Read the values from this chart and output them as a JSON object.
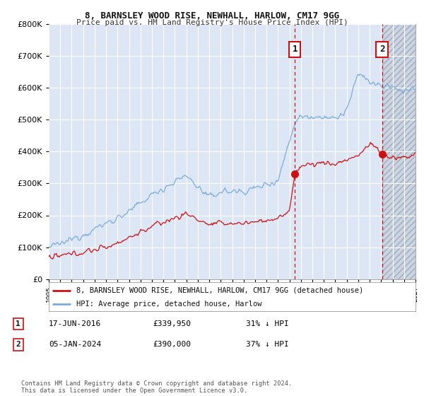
{
  "title": "8, BARNSLEY WOOD RISE, NEWHALL, HARLOW, CM17 9GG",
  "subtitle": "Price paid vs. HM Land Registry's House Price Index (HPI)",
  "hpi_label": "HPI: Average price, detached house, Harlow",
  "property_label": "8, BARNSLEY WOOD RISE, NEWHALL, HARLOW, CM17 9GG (detached house)",
  "transaction1_date": "17-JUN-2016",
  "transaction1_price": "£339,950",
  "transaction1_hpi": "31% ↓ HPI",
  "transaction1_year": 2016.46,
  "transaction1_value": 339950,
  "transaction2_date": "05-JAN-2024",
  "transaction2_price": "£390,000",
  "transaction2_hpi": "37% ↓ HPI",
  "transaction2_year": 2024.04,
  "transaction2_value": 390000,
  "ylim": [
    0,
    800000
  ],
  "xlim": [
    1995,
    2027
  ],
  "background_color": "#ffffff",
  "plot_bg_color": "#dce6f5",
  "hatch_bg_color": "#d0d8e8",
  "hpi_color": "#7aaddd",
  "property_color": "#cc1111",
  "vline_color": "#cc1111",
  "grid_color": "#ffffff",
  "annotation_border_color": "#cc1111",
  "footer": "Contains HM Land Registry data © Crown copyright and database right 2024.\nThis data is licensed under the Open Government Licence v3.0."
}
